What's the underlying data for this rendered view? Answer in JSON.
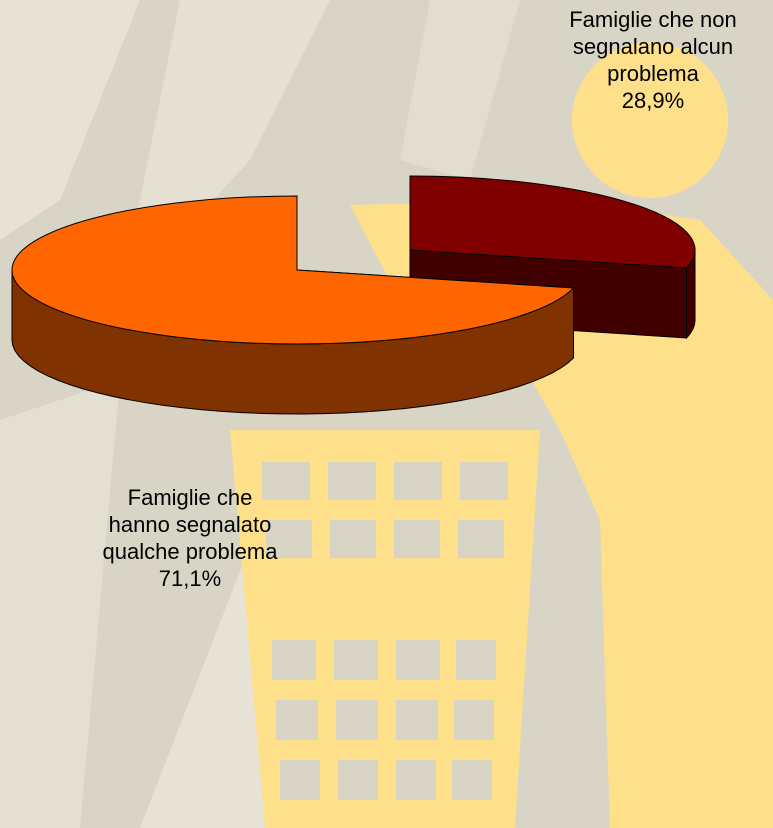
{
  "chart_data": {
    "type": "pie3d",
    "categories": [
      "Famiglie che non\nsegnalano alcun\nproblema",
      "Famiglie che\nhanno segnalato\nqualche problema"
    ],
    "values": [
      28.9,
      71.1
    ],
    "value_labels": [
      "28,9%",
      "71,1%"
    ],
    "colors": [
      "#800000",
      "#ff6600"
    ]
  }
}
